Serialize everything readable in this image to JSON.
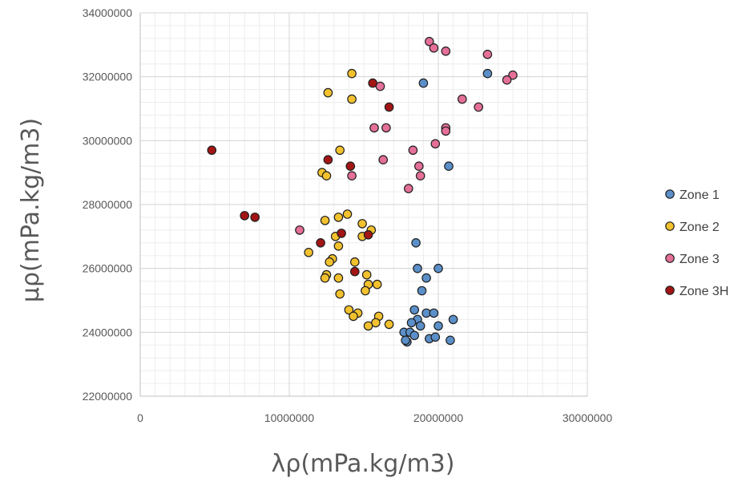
{
  "chart_data": {
    "type": "scatter",
    "xlabel": "λρ(mPa.kg/m3)",
    "ylabel": "μρ(mPa.kg/m3)",
    "xlim": [
      0,
      30000000
    ],
    "ylim": [
      22000000,
      34000000
    ],
    "x_ticks": [
      "0",
      "10000000",
      "20000000",
      "30000000"
    ],
    "y_ticks": [
      "22000000",
      "24000000",
      "26000000",
      "28000000",
      "30000000",
      "32000000",
      "34000000"
    ],
    "grid": true,
    "legend_position": "right",
    "series": [
      {
        "name": "Zone 1",
        "color": "#5B8FC9",
        "points": [
          [
            23300000,
            32100000
          ],
          [
            19000000,
            31800000
          ],
          [
            20700000,
            29200000
          ],
          [
            18500000,
            26800000
          ],
          [
            18600000,
            26000000
          ],
          [
            20000000,
            26000000
          ],
          [
            19200000,
            25700000
          ],
          [
            18900000,
            25300000
          ],
          [
            18400000,
            24700000
          ],
          [
            19200000,
            24600000
          ],
          [
            19700000,
            24600000
          ],
          [
            18600000,
            24400000
          ],
          [
            18200000,
            24300000
          ],
          [
            18800000,
            24200000
          ],
          [
            21000000,
            24400000
          ],
          [
            20000000,
            24200000
          ],
          [
            17700000,
            24000000
          ],
          [
            18100000,
            24000000
          ],
          [
            18400000,
            23900000
          ],
          [
            17900000,
            23700000
          ],
          [
            17800000,
            23750000
          ],
          [
            19400000,
            23800000
          ],
          [
            19800000,
            23850000
          ],
          [
            20800000,
            23750000
          ]
        ]
      },
      {
        "name": "Zone 2",
        "color": "#F2C12E",
        "points": [
          [
            14200000,
            32100000
          ],
          [
            12600000,
            31500000
          ],
          [
            14200000,
            31300000
          ],
          [
            13400000,
            29700000
          ],
          [
            12200000,
            29000000
          ],
          [
            12500000,
            28900000
          ],
          [
            13900000,
            27700000
          ],
          [
            13300000,
            27600000
          ],
          [
            12400000,
            27500000
          ],
          [
            14900000,
            27400000
          ],
          [
            15500000,
            27200000
          ],
          [
            13100000,
            27000000
          ],
          [
            14900000,
            27000000
          ],
          [
            13300000,
            26700000
          ],
          [
            11300000,
            26500000
          ],
          [
            12900000,
            26300000
          ],
          [
            12700000,
            26200000
          ],
          [
            14400000,
            26200000
          ],
          [
            12500000,
            25800000
          ],
          [
            15200000,
            25800000
          ],
          [
            12400000,
            25700000
          ],
          [
            13300000,
            25700000
          ],
          [
            15300000,
            25500000
          ],
          [
            15900000,
            25500000
          ],
          [
            15100000,
            25300000
          ],
          [
            13400000,
            25200000
          ],
          [
            14000000,
            24700000
          ],
          [
            14600000,
            24600000
          ],
          [
            16000000,
            24500000
          ],
          [
            14300000,
            24500000
          ],
          [
            15800000,
            24300000
          ],
          [
            16700000,
            24250000
          ],
          [
            15300000,
            24200000
          ]
        ]
      },
      {
        "name": "Zone 3",
        "color": "#E46F98",
        "points": [
          [
            19400000,
            33100000
          ],
          [
            19700000,
            32900000
          ],
          [
            20500000,
            32800000
          ],
          [
            23300000,
            32700000
          ],
          [
            25000000,
            32050000
          ],
          [
            24600000,
            31900000
          ],
          [
            16100000,
            31700000
          ],
          [
            21600000,
            31300000
          ],
          [
            22700000,
            31050000
          ],
          [
            15700000,
            30400000
          ],
          [
            16500000,
            30400000
          ],
          [
            20500000,
            30400000
          ],
          [
            20500000,
            30300000
          ],
          [
            19800000,
            29900000
          ],
          [
            18300000,
            29700000
          ],
          [
            16300000,
            29400000
          ],
          [
            18700000,
            29200000
          ],
          [
            18800000,
            28900000
          ],
          [
            14200000,
            28900000
          ],
          [
            18000000,
            28500000
          ],
          [
            10700000,
            27200000
          ]
        ]
      },
      {
        "name": "Zone 3H",
        "color": "#A31515",
        "points": [
          [
            15600000,
            31800000
          ],
          [
            16700000,
            31050000
          ],
          [
            4800000,
            29700000
          ],
          [
            12600000,
            29400000
          ],
          [
            14100000,
            29200000
          ],
          [
            7000000,
            27650000
          ],
          [
            7700000,
            27600000
          ],
          [
            13500000,
            27100000
          ],
          [
            15300000,
            27050000
          ],
          [
            12100000,
            26800000
          ],
          [
            14400000,
            25900000
          ]
        ]
      }
    ]
  }
}
